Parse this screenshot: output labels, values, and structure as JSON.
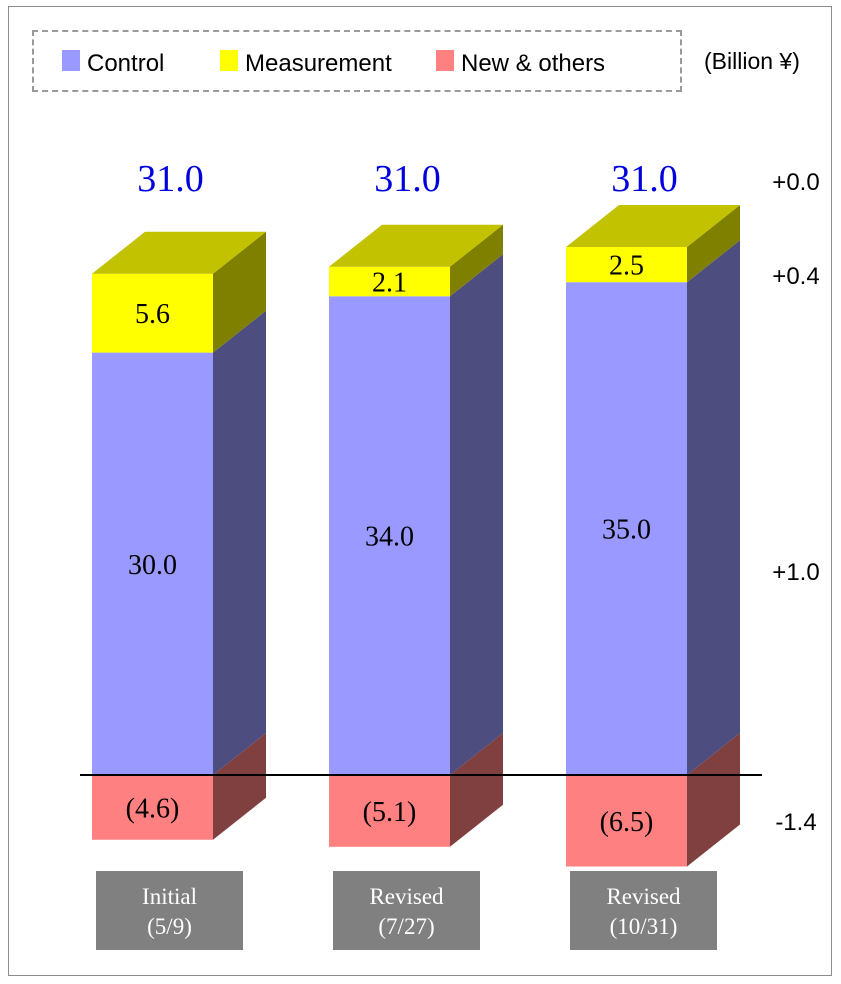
{
  "chart_data": {
    "type": "bar",
    "stacked": true,
    "style": "3d",
    "unit": "(Billion ¥)",
    "categories": [
      "Initial\n(5/9)",
      "Revised\n(7/27)",
      "Revised\n(10/31)"
    ],
    "series": [
      {
        "name": "Control",
        "color": "#9999ff",
        "labels": [
          "30.0",
          "34.0",
          "35.0"
        ],
        "values": [
          30.0,
          34.0,
          35.0
        ]
      },
      {
        "name": "Measurement",
        "color": "#ffff00",
        "labels": [
          "5.6",
          "2.1",
          "2.5"
        ],
        "values": [
          5.6,
          2.1,
          2.5
        ]
      },
      {
        "name": "New & others",
        "color": "#ff8080",
        "labels": [
          "(4.6)",
          "(5.1)",
          "(6.5)"
        ],
        "values": [
          -4.6,
          -5.1,
          -6.5
        ]
      }
    ],
    "totals": [
      "31.0",
      "31.0",
      "31.0"
    ],
    "right_annotations": [
      "+0.0",
      "+0.4",
      "+1.0",
      "-1.4"
    ],
    "legend_position": "top"
  }
}
